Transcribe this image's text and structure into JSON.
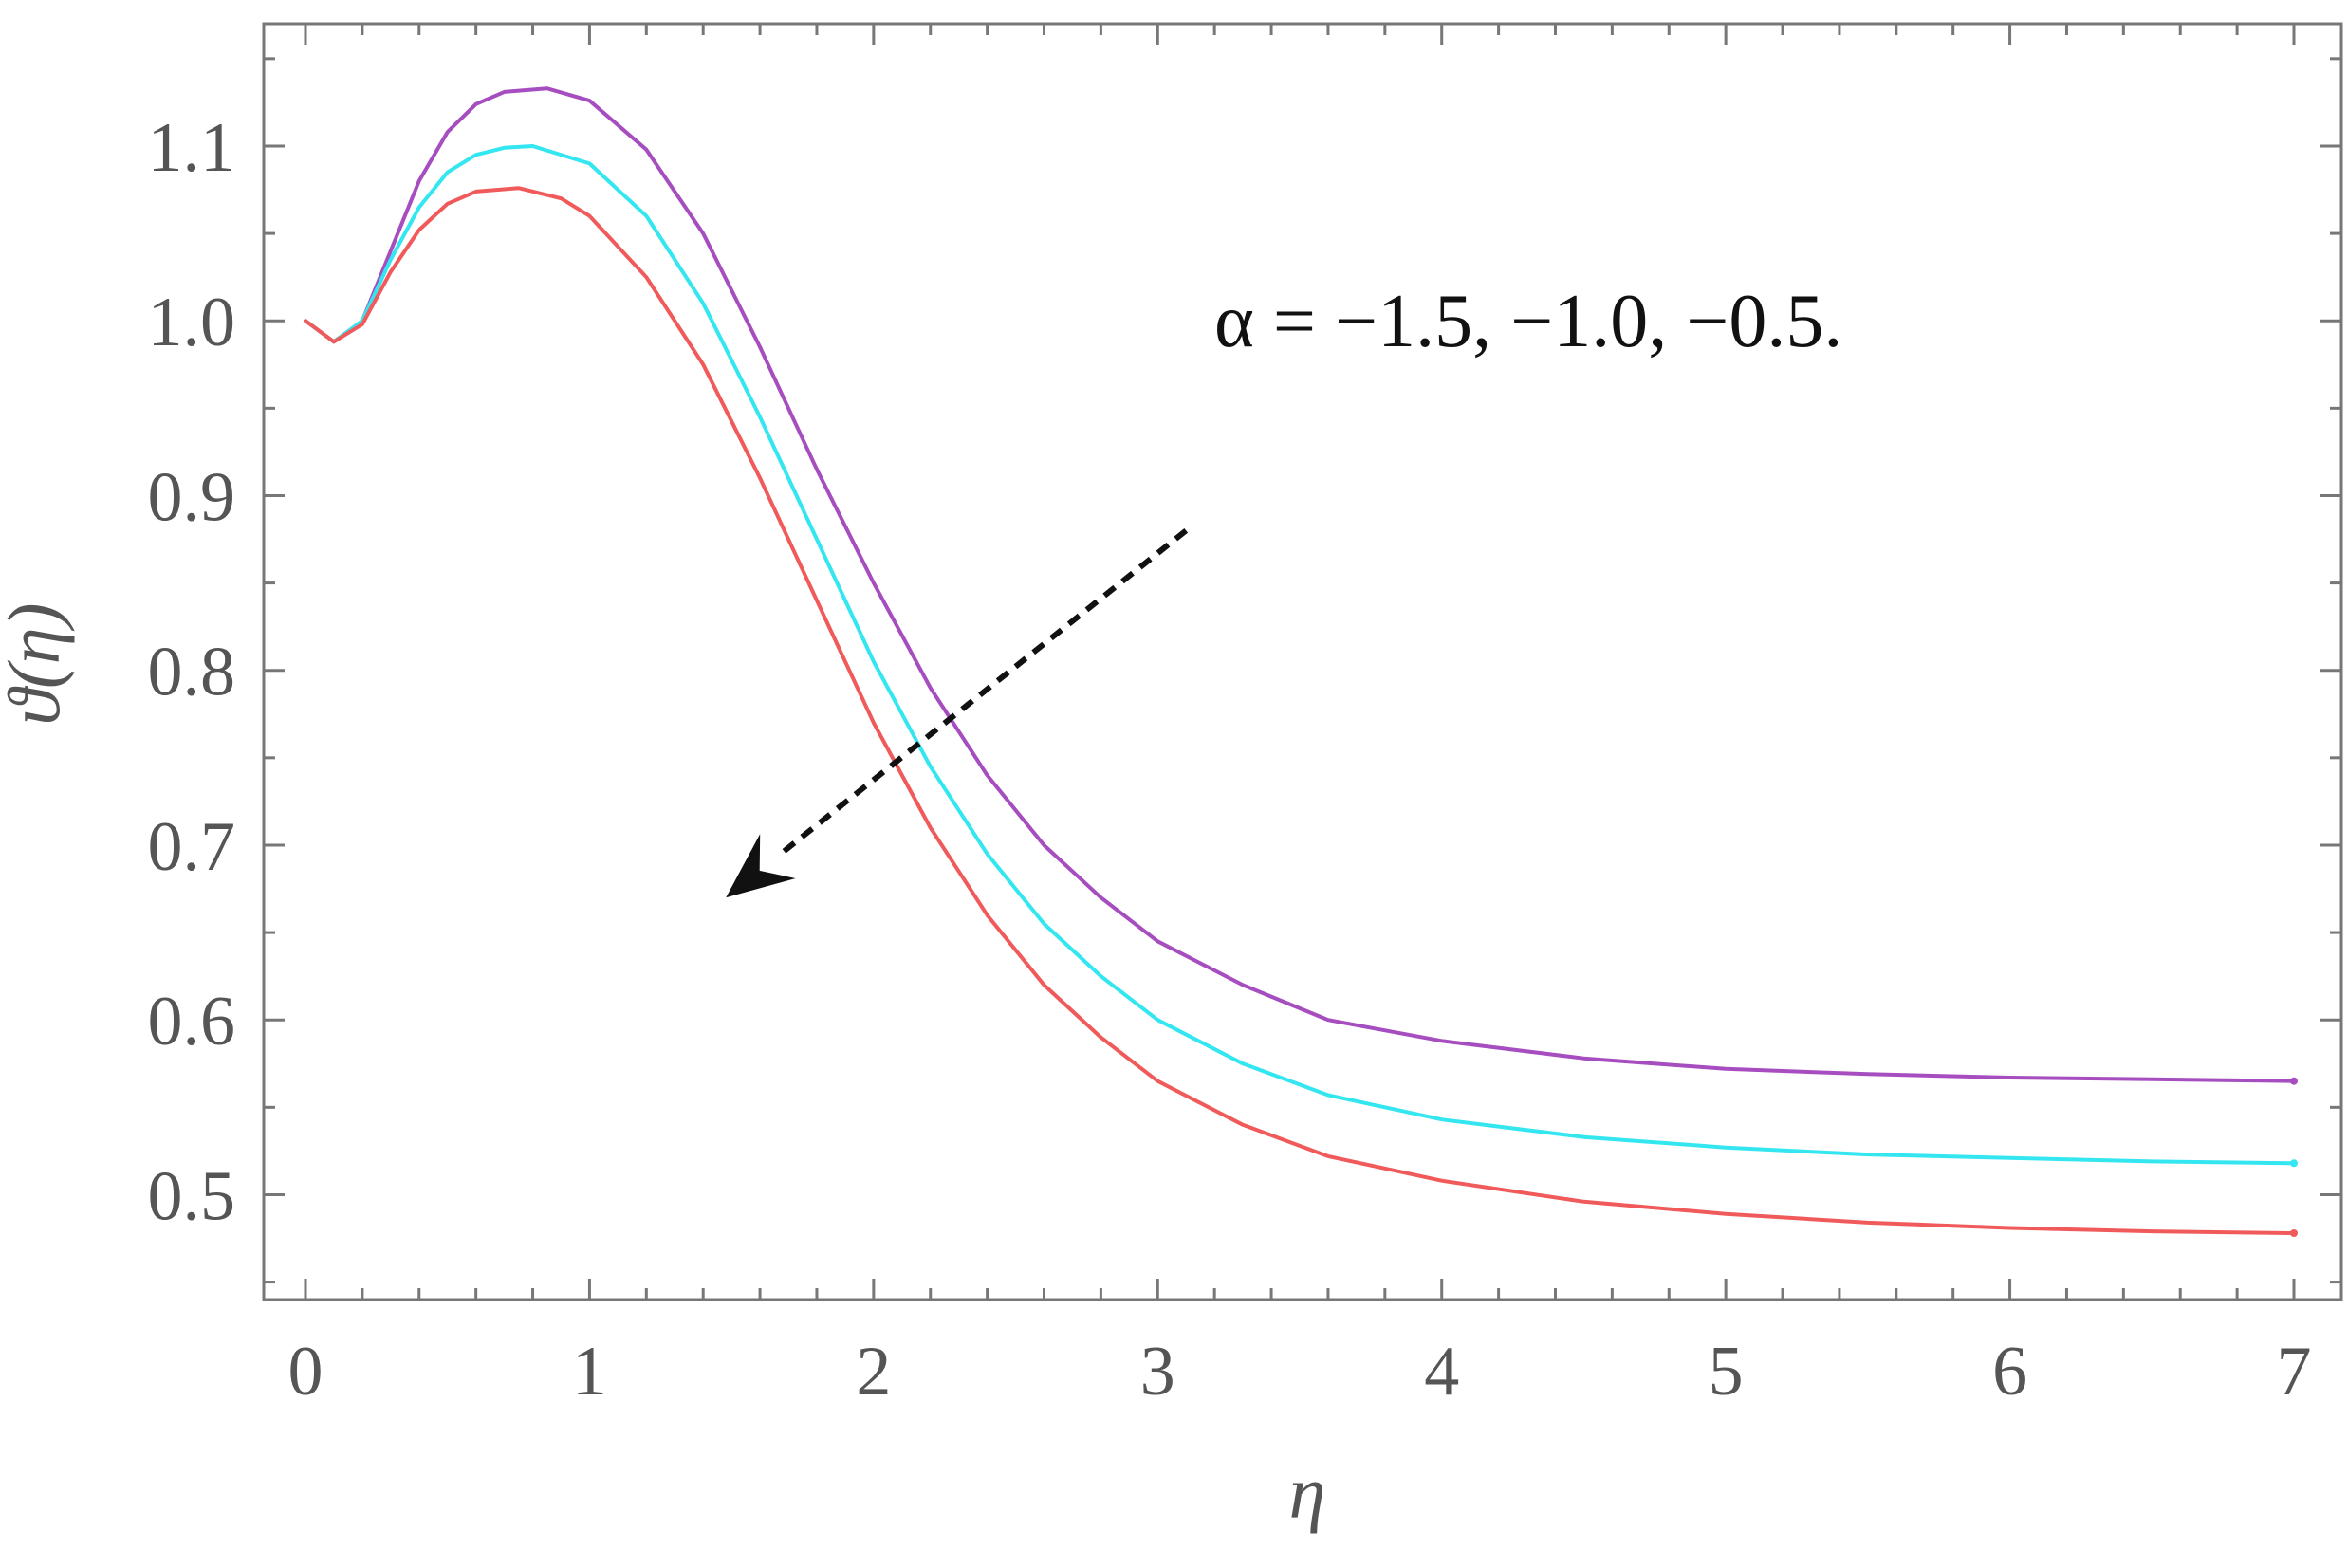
{
  "chart_data": {
    "type": "line",
    "title": "",
    "xlabel": "η",
    "ylabel": "ϑ(η)",
    "xlim": [
      0,
      7
    ],
    "ylim": [
      0.44,
      1.17
    ],
    "x_ticks": [
      "0",
      "1",
      "2",
      "3",
      "4",
      "5",
      "6",
      "7"
    ],
    "y_ticks": [
      "0.5",
      "0.6",
      "0.7",
      "0.8",
      "0.9",
      "1.0",
      "1.1"
    ],
    "grid": false,
    "legend": "none",
    "annotation": {
      "text": "α = −1.5, −1.0, −0.5.",
      "arrow": {
        "from": [
          3.1,
          0.88
        ],
        "to": [
          1.48,
          0.67
        ],
        "style": "dashed"
      }
    },
    "series": [
      {
        "color": "#a64dbf",
        "x": [
          0,
          0.1,
          0.2,
          0.3,
          0.4,
          0.5,
          0.6,
          0.7,
          0.85,
          1.0,
          1.2,
          1.4,
          1.6,
          1.8,
          2.0,
          2.2,
          2.4,
          2.6,
          2.8,
          3.0,
          3.3,
          3.6,
          4.0,
          4.5,
          5.0,
          5.5,
          6.0,
          6.5,
          7.0
        ],
        "y": [
          1.0,
          0.988,
          1.0,
          1.04,
          1.08,
          1.108,
          1.124,
          1.131,
          1.133,
          1.126,
          1.098,
          1.05,
          0.985,
          0.915,
          0.85,
          0.79,
          0.74,
          0.7,
          0.67,
          0.645,
          0.62,
          0.6,
          0.588,
          0.578,
          0.572,
          0.569,
          0.567,
          0.566,
          0.565
        ]
      },
      {
        "color": "#33e6f0",
        "x": [
          0,
          0.1,
          0.2,
          0.3,
          0.4,
          0.5,
          0.6,
          0.7,
          0.8,
          1.0,
          1.2,
          1.4,
          1.6,
          1.8,
          2.0,
          2.2,
          2.4,
          2.6,
          2.8,
          3.0,
          3.3,
          3.6,
          4.0,
          4.5,
          5.0,
          5.5,
          6.0,
          6.5,
          7.0
        ],
        "y": [
          1.0,
          0.988,
          1.0,
          1.035,
          1.065,
          1.085,
          1.095,
          1.099,
          1.1,
          1.09,
          1.06,
          1.01,
          0.945,
          0.875,
          0.805,
          0.745,
          0.695,
          0.655,
          0.625,
          0.6,
          0.575,
          0.557,
          0.543,
          0.533,
          0.527,
          0.523,
          0.521,
          0.519,
          0.518
        ]
      },
      {
        "color": "#f05a5a",
        "x": [
          0,
          0.1,
          0.2,
          0.3,
          0.4,
          0.5,
          0.6,
          0.75,
          0.9,
          1.0,
          1.2,
          1.4,
          1.6,
          1.8,
          2.0,
          2.2,
          2.4,
          2.6,
          2.8,
          3.0,
          3.3,
          3.6,
          4.0,
          4.5,
          5.0,
          5.5,
          6.0,
          6.5,
          7.0
        ],
        "y": [
          1.0,
          0.988,
          0.998,
          1.028,
          1.052,
          1.067,
          1.074,
          1.076,
          1.07,
          1.06,
          1.025,
          0.975,
          0.91,
          0.84,
          0.77,
          0.71,
          0.66,
          0.62,
          0.59,
          0.565,
          0.54,
          0.522,
          0.508,
          0.496,
          0.489,
          0.484,
          0.481,
          0.479,
          0.478
        ]
      }
    ]
  }
}
